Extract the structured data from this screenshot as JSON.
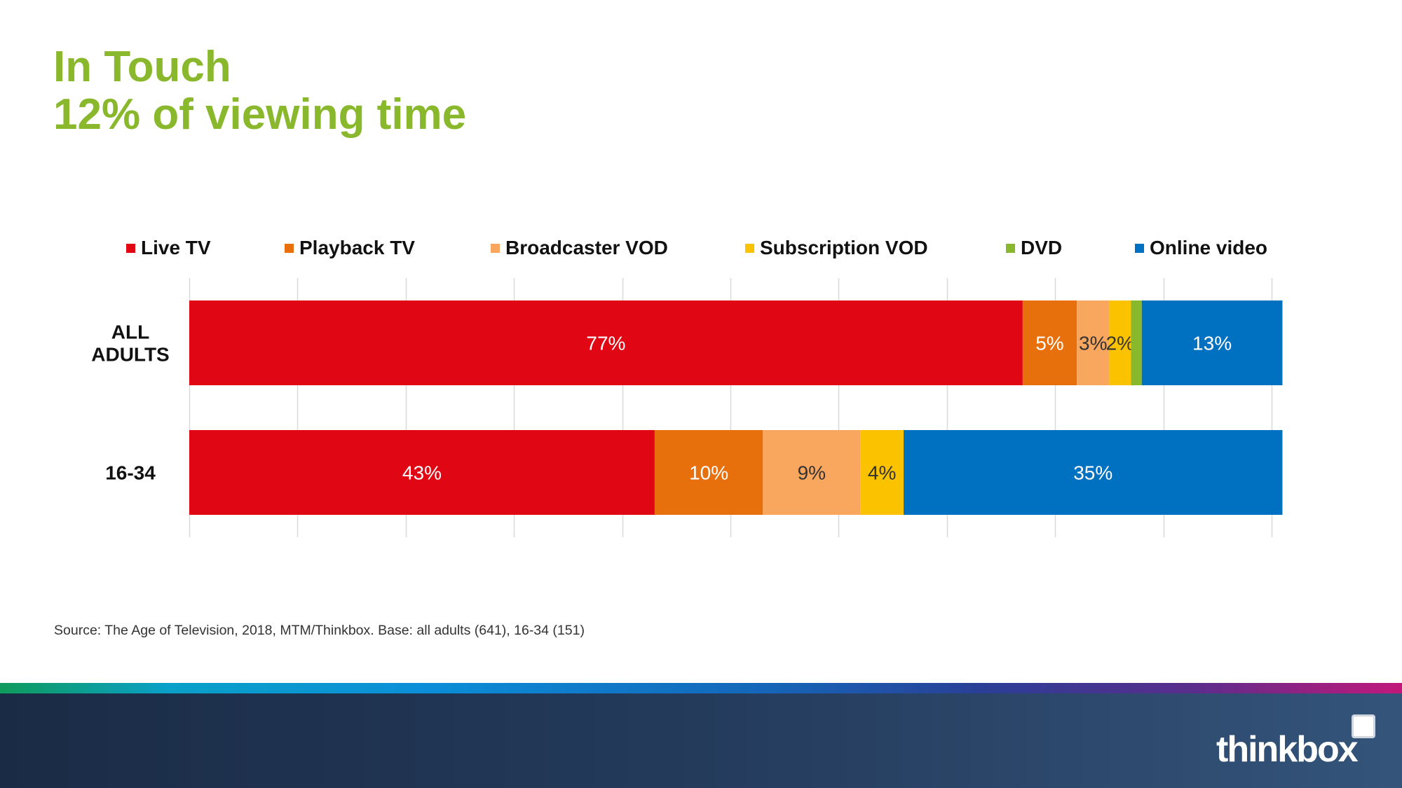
{
  "title": {
    "line1": "In Touch",
    "line2": "12% of viewing time",
    "color": "#8ab82c"
  },
  "chart_data": {
    "type": "bar",
    "orientation": "horizontal",
    "stacked": true,
    "categories": [
      "ALL ADULTS",
      "16-34"
    ],
    "category_lines": [
      [
        "ALL",
        "ADULTS"
      ],
      [
        "16-34"
      ]
    ],
    "series": [
      {
        "name": "Live TV",
        "color": "#e00613",
        "label_color": "#ffffff",
        "values": [
          77,
          43
        ],
        "labels": [
          "77%",
          "43%"
        ]
      },
      {
        "name": "Playback TV",
        "color": "#e8700c",
        "label_color": "#ffffff",
        "values": [
          5,
          10
        ],
        "labels": [
          "5%",
          "10%"
        ]
      },
      {
        "name": "Broadcaster VOD",
        "color": "#f9a65f",
        "label_color": "#333333",
        "values": [
          3,
          9
        ],
        "labels": [
          "3%",
          "9%"
        ]
      },
      {
        "name": "Subscription VOD",
        "color": "#fbc200",
        "label_color": "#333333",
        "values": [
          2,
          4
        ],
        "labels": [
          "2%",
          "4%"
        ]
      },
      {
        "name": "DVD",
        "color": "#8ab82c",
        "label_color": "#333333",
        "values": [
          1,
          0
        ],
        "labels": [
          "",
          ""
        ]
      },
      {
        "name": "Online video",
        "color": "#0070c0",
        "label_color": "#ffffff",
        "values": [
          13,
          35
        ],
        "labels": [
          "13%",
          "35%"
        ]
      }
    ],
    "xlim": [
      0,
      100
    ],
    "grid": true,
    "legend": "top"
  },
  "source": "Source: The Age of Television, 2018, MTM/Thinkbox.  Base: all adults (641), 16-34 (151)",
  "footer": {
    "logo_text": "thinkbox"
  }
}
